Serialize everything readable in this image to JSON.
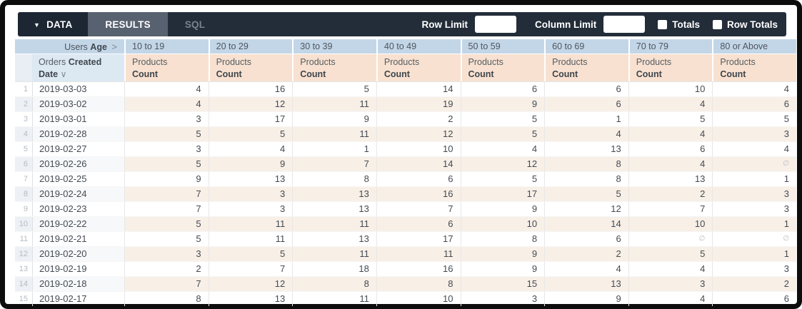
{
  "toolbar": {
    "tabs": {
      "data": "DATA",
      "results": "RESULTS",
      "sql": "SQL"
    },
    "caret": "▼",
    "row_limit_label": "Row Limit",
    "row_limit_value": "",
    "column_limit_label": "Column Limit",
    "column_limit_value": "",
    "totals_label": "Totals",
    "row_totals_label": "Row Totals"
  },
  "table": {
    "pivot": {
      "dim_regular": "Users",
      "dim_bold": "Age",
      "chevron": ">",
      "values": [
        "10 to 19",
        "20 to 29",
        "30 to 39",
        "40 to 49",
        "50 to 59",
        "60 to 69",
        "70 to 79",
        "80 or Above"
      ]
    },
    "row_dim": {
      "regular": "Orders",
      "bold": "Created Date",
      "sort_icon": "∨"
    },
    "measure": {
      "regular": "Products",
      "bold": "Count"
    },
    "null_symbol": "∅",
    "rows": [
      {
        "n": 1,
        "date": "2019-03-03",
        "values": [
          4,
          16,
          5,
          14,
          6,
          6,
          10,
          4
        ]
      },
      {
        "n": 2,
        "date": "2019-03-02",
        "values": [
          4,
          12,
          11,
          19,
          9,
          6,
          4,
          6
        ]
      },
      {
        "n": 3,
        "date": "2019-03-01",
        "values": [
          3,
          17,
          9,
          2,
          5,
          1,
          5,
          5
        ]
      },
      {
        "n": 4,
        "date": "2019-02-28",
        "values": [
          5,
          5,
          11,
          12,
          5,
          4,
          4,
          3
        ]
      },
      {
        "n": 5,
        "date": "2019-02-27",
        "values": [
          3,
          4,
          1,
          10,
          4,
          13,
          6,
          4
        ]
      },
      {
        "n": 6,
        "date": "2019-02-26",
        "values": [
          5,
          9,
          7,
          14,
          12,
          8,
          4,
          null
        ]
      },
      {
        "n": 7,
        "date": "2019-02-25",
        "values": [
          9,
          13,
          8,
          6,
          5,
          8,
          13,
          1
        ]
      },
      {
        "n": 8,
        "date": "2019-02-24",
        "values": [
          7,
          3,
          13,
          16,
          17,
          5,
          2,
          3
        ]
      },
      {
        "n": 9,
        "date": "2019-02-23",
        "values": [
          7,
          3,
          13,
          7,
          9,
          12,
          7,
          3
        ]
      },
      {
        "n": 10,
        "date": "2019-02-22",
        "values": [
          5,
          11,
          11,
          6,
          10,
          14,
          10,
          1
        ]
      },
      {
        "n": 11,
        "date": "2019-02-21",
        "values": [
          5,
          11,
          13,
          17,
          8,
          6,
          null,
          null
        ]
      },
      {
        "n": 12,
        "date": "2019-02-20",
        "values": [
          3,
          5,
          11,
          11,
          9,
          2,
          5,
          1
        ]
      },
      {
        "n": 13,
        "date": "2019-02-19",
        "values": [
          2,
          7,
          18,
          16,
          9,
          4,
          4,
          3
        ]
      },
      {
        "n": 14,
        "date": "2019-02-18",
        "values": [
          7,
          12,
          8,
          8,
          15,
          13,
          3,
          2
        ]
      },
      {
        "n": 15,
        "date": "2019-02-17",
        "values": [
          8,
          13,
          11,
          10,
          3,
          9,
          4,
          6
        ]
      }
    ]
  },
  "colors": {
    "frame": "#0d0d0d",
    "toolbar_bg": "#232d39",
    "tab_data_bg": "#1d2733",
    "tab_results_bg": "#57616f",
    "pivot_header_bg": "#c3d6e8",
    "row_dim_header_bg": "#dce8f2",
    "measure_header_bg": "#f8e1d0",
    "stripe_measure_bg": "#f8efe7",
    "stripe_dim_bg": "#f6f8fa"
  }
}
